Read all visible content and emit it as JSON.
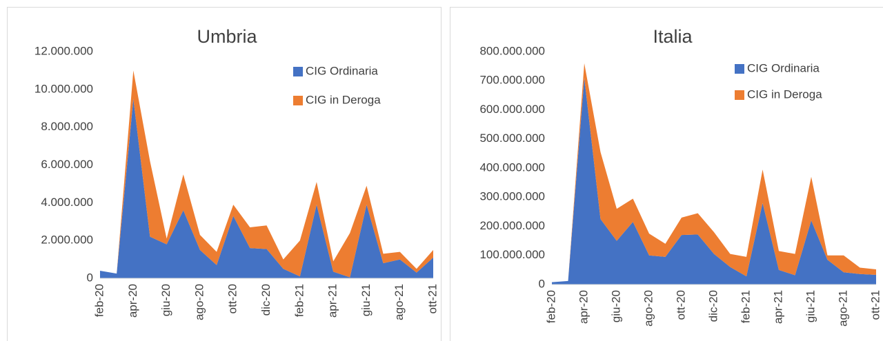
{
  "chart_data": [
    {
      "type": "area",
      "title": "Umbria",
      "categories": [
        "feb-20",
        null,
        "apr-20",
        null,
        "giu-20",
        null,
        "ago-20",
        null,
        "ott-20",
        null,
        "dic-20",
        null,
        "feb-21",
        null,
        "apr-21",
        null,
        "giu-21",
        null,
        "ago-21",
        null,
        "ott-21"
      ],
      "series": [
        {
          "name": "CIG Ordinaria",
          "color": "#4472c4",
          "values": [
            400000,
            250000,
            9500000,
            2200000,
            1800000,
            3600000,
            1500000,
            700000,
            3300000,
            1600000,
            1550000,
            500000,
            100000,
            3900000,
            350000,
            50000,
            3900000,
            800000,
            1000000,
            300000,
            1100000
          ]
        },
        {
          "name": "CIG in Deroga",
          "color": "#ed7d31",
          "values": [
            0,
            0,
            1500000,
            4000000,
            300000,
            1900000,
            800000,
            700000,
            600000,
            1100000,
            1250000,
            500000,
            1900000,
            1200000,
            550000,
            2350000,
            1000000,
            500000,
            400000,
            200000,
            400000
          ]
        }
      ],
      "stacked": true,
      "ylim": [
        0,
        12000000
      ],
      "yticks": [
        0,
        {
          "value": 2000000,
          "label": "2.000.000"
        },
        {
          "value": 4000000,
          "label": "4.000.000"
        },
        {
          "value": 6000000,
          "label": "6.000.000"
        },
        {
          "value": 8000000,
          "label": "8.000.000"
        },
        {
          "value": 10000000,
          "label": "10.000.000"
        },
        {
          "value": 12000000,
          "label": "12.000.000"
        }
      ],
      "legend": "upper right"
    },
    {
      "type": "area",
      "title": "Italia",
      "categories": [
        "feb-20",
        null,
        "apr-20",
        null,
        "giu-20",
        null,
        "ago-20",
        null,
        "ott-20",
        null,
        "dic-20",
        null,
        "feb-21",
        null,
        "apr-21",
        null,
        "giu-21",
        null,
        "ago-21",
        null,
        "ott-21"
      ],
      "series": [
        {
          "name": "CIG Ordinaria",
          "color": "#4472c4",
          "values": [
            8000000,
            12000000,
            710000000,
            225000000,
            150000000,
            215000000,
            100000000,
            95000000,
            170000000,
            172000000,
            105000000,
            60000000,
            28000000,
            280000000,
            50000000,
            32000000,
            220000000,
            85000000,
            42000000,
            36000000,
            33000000
          ]
        },
        {
          "name": "CIG in Deroga",
          "color": "#ed7d31",
          "values": [
            0,
            0,
            50000000,
            230000000,
            110000000,
            80000000,
            75000000,
            45000000,
            60000000,
            73000000,
            75000000,
            45000000,
            67000000,
            115000000,
            65000000,
            73000000,
            150000000,
            15000000,
            58000000,
            22000000,
            19000000
          ]
        }
      ],
      "stacked": true,
      "ylim": [
        0,
        800000000
      ],
      "yticks": [
        0,
        {
          "value": 100000000,
          "label": "100.000.000"
        },
        {
          "value": 200000000,
          "label": "200.000.000"
        },
        {
          "value": 300000000,
          "label": "300.000.000"
        },
        {
          "value": 400000000,
          "label": "400.000.000"
        },
        {
          "value": 500000000,
          "label": "500.000.000"
        },
        {
          "value": 600000000,
          "label": "600.000.000"
        },
        {
          "value": 700000000,
          "label": "700.000.000"
        },
        {
          "value": 800000000,
          "label": "800.000.000"
        }
      ],
      "legend": "upper right"
    }
  ]
}
